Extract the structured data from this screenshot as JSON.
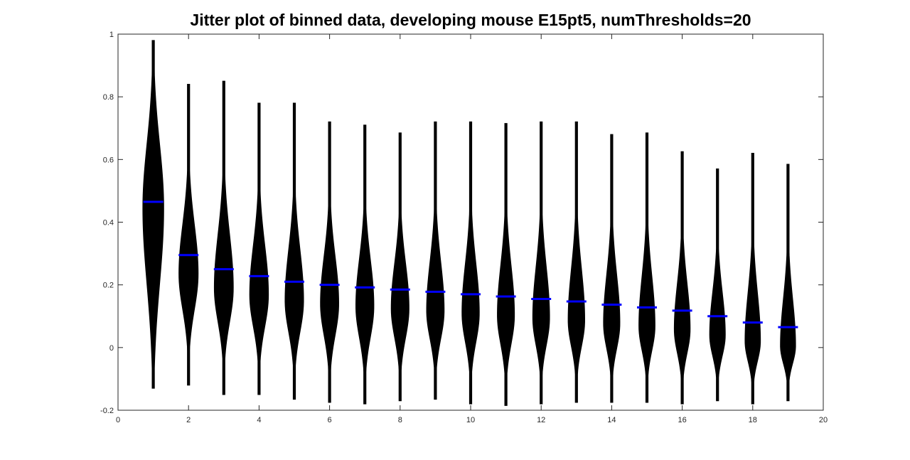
{
  "chart_data": {
    "type": "violin",
    "title": "Jitter plot of binned data, developing mouse E15pt5, numThresholds=20",
    "xlabel": "",
    "ylabel": "",
    "xlim": [
      0,
      20
    ],
    "ylim": [
      -0.2,
      1
    ],
    "x_ticks": [
      "0",
      "2",
      "4",
      "6",
      "8",
      "10",
      "12",
      "14",
      "16",
      "18",
      "20"
    ],
    "y_ticks": [
      "-0.2",
      "0",
      "0.2",
      "0.4",
      "0.6",
      "0.8",
      "1"
    ],
    "grid": false,
    "legend": "none",
    "colors": {
      "violin": "#000000",
      "mean_line": "#0000ff",
      "axes": "#262626"
    },
    "violins": [
      {
        "x": 1,
        "min": -0.13,
        "max": 0.98,
        "mean": 0.465
      },
      {
        "x": 2,
        "min": -0.12,
        "max": 0.84,
        "mean": 0.295
      },
      {
        "x": 3,
        "min": -0.15,
        "max": 0.85,
        "mean": 0.25
      },
      {
        "x": 4,
        "min": -0.15,
        "max": 0.78,
        "mean": 0.228
      },
      {
        "x": 5,
        "min": -0.165,
        "max": 0.78,
        "mean": 0.21
      },
      {
        "x": 6,
        "min": -0.175,
        "max": 0.72,
        "mean": 0.2
      },
      {
        "x": 7,
        "min": -0.18,
        "max": 0.71,
        "mean": 0.192
      },
      {
        "x": 8,
        "min": -0.17,
        "max": 0.685,
        "mean": 0.185
      },
      {
        "x": 9,
        "min": -0.165,
        "max": 0.72,
        "mean": 0.178
      },
      {
        "x": 10,
        "min": -0.18,
        "max": 0.72,
        "mean": 0.17
      },
      {
        "x": 11,
        "min": -0.185,
        "max": 0.715,
        "mean": 0.163
      },
      {
        "x": 12,
        "min": -0.18,
        "max": 0.72,
        "mean": 0.155
      },
      {
        "x": 13,
        "min": -0.175,
        "max": 0.72,
        "mean": 0.147
      },
      {
        "x": 14,
        "min": -0.175,
        "max": 0.68,
        "mean": 0.137
      },
      {
        "x": 15,
        "min": -0.175,
        "max": 0.685,
        "mean": 0.128
      },
      {
        "x": 16,
        "min": -0.18,
        "max": 0.625,
        "mean": 0.118
      },
      {
        "x": 17,
        "min": -0.17,
        "max": 0.57,
        "mean": 0.1
      },
      {
        "x": 18,
        "min": -0.18,
        "max": 0.62,
        "mean": 0.08
      },
      {
        "x": 19,
        "min": -0.17,
        "max": 0.585,
        "mean": 0.065
      }
    ]
  }
}
